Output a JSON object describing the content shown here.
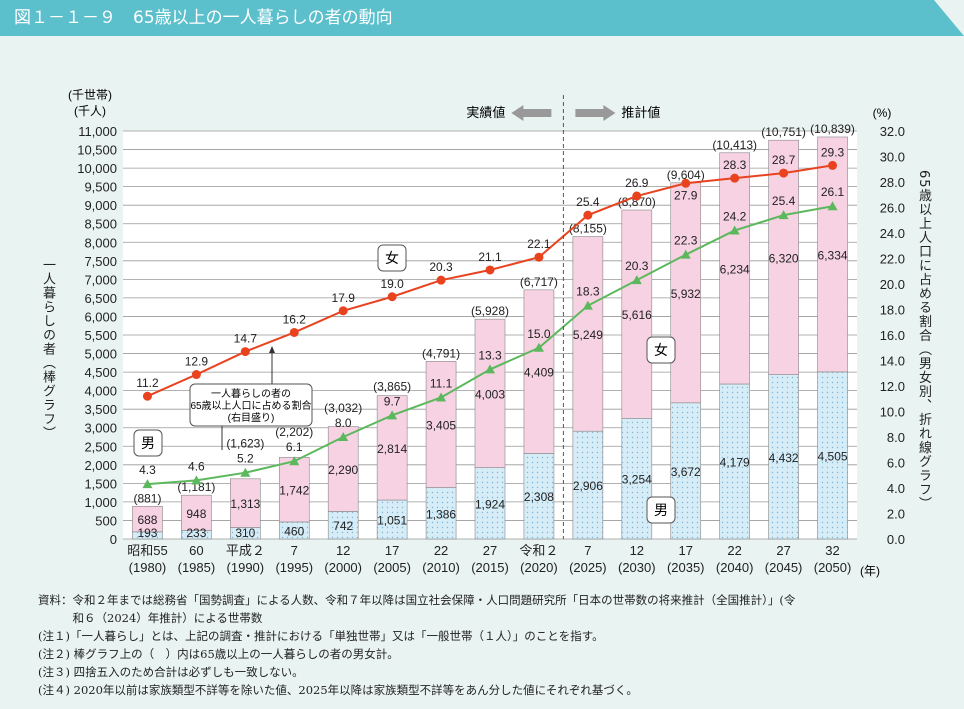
{
  "header": {
    "title": "図１－１－９　65歳以上の一人暮らしの者の動向"
  },
  "chart_data": {
    "type": "bar+line",
    "categories": [
      "昭和55",
      "60",
      "平成２",
      "7",
      "12",
      "17",
      "22",
      "27",
      "令和２",
      "7",
      "12",
      "17",
      "22",
      "27",
      "32"
    ],
    "years": [
      "(1980)",
      "(1985)",
      "(1990)",
      "(1995)",
      "(2000)",
      "(2005)",
      "(2010)",
      "(2015)",
      "(2020)",
      "(2025)",
      "(2030)",
      "(2035)",
      "(2040)",
      "(2045)",
      "(2050)"
    ],
    "x_unit": "(年)",
    "left_axis": {
      "unit1": "(千世帯)",
      "unit2": "(千人)",
      "label": "一人暮らしの者（棒グラフ）",
      "range": [
        0,
        11000
      ],
      "step": 500
    },
    "right_axis": {
      "unit": "(%)",
      "label": "65歳以上人口に占める割合（男女別、折れ線グラフ）",
      "range": [
        0,
        32
      ],
      "step": 2
    },
    "bars": [
      {
        "name": "男",
        "values": [
          193,
          233,
          310,
          460,
          742,
          1051,
          1386,
          1924,
          2308,
          2906,
          3254,
          3672,
          4179,
          4432,
          4505
        ],
        "color": "#d6ecf7"
      },
      {
        "name": "女",
        "values": [
          688,
          948,
          1313,
          1742,
          2290,
          2814,
          3405,
          4003,
          4409,
          5249,
          5616,
          5932,
          6234,
          6320,
          6334
        ],
        "color": "#f7d2e2"
      }
    ],
    "totals": [
      "(881)",
      "(1,181)",
      "(1,623)",
      "(2,202)",
      "(3,032)",
      "(3,865)",
      "(4,791)",
      "(5,928)",
      "(6,717)",
      "(8,155)",
      "(8,870)",
      "(9,604)",
      "(10,413)",
      "(10,751)",
      "(10,839)"
    ],
    "lines": [
      {
        "name": "女",
        "values": [
          11.2,
          12.9,
          14.7,
          16.2,
          17.9,
          19.0,
          20.3,
          21.1,
          22.1,
          25.4,
          26.9,
          27.9,
          28.3,
          28.7,
          29.3
        ],
        "color": "#e8431e",
        "marker": "circle"
      },
      {
        "name": "男",
        "values": [
          4.3,
          4.6,
          5.2,
          6.1,
          8.0,
          9.7,
          11.1,
          13.3,
          15.0,
          18.3,
          20.3,
          22.3,
          24.2,
          25.4,
          26.1
        ],
        "color": "#5cb85c",
        "marker": "triangle"
      }
    ],
    "annotations": {
      "actual": "実績値",
      "projection": "推計値",
      "callout": [
        "一人暮らしの者の",
        "65歳以上人口に占める割合",
        "(右目盛り)"
      ],
      "female_tag": "女",
      "male_tag": "男"
    },
    "grid": true
  },
  "notes": [
    "資料：令和２年までは総務省「国勢調査」による人数、令和７年以降は国立社会保障・人口問題研究所「日本の世帯数の将来推計（全国推計）」(令",
    "　　　和６（2024）年推計）による世帯数",
    "(注１)「一人暮らし」とは、上記の調査・推計における「単独世帯」又は「一般世帯（１人）」のことを指す。",
    "(注２) 棒グラフ上の（　）内は65歳以上の一人暮らしの者の男女計。",
    "(注３) 四捨五入のため合計は必ずしも一致しない。",
    "(注４) 2020年以前は家族類型不詳等を除いた値、2025年以降は家族類型不詳等をあん分した値にそれぞれ基づく。"
  ]
}
